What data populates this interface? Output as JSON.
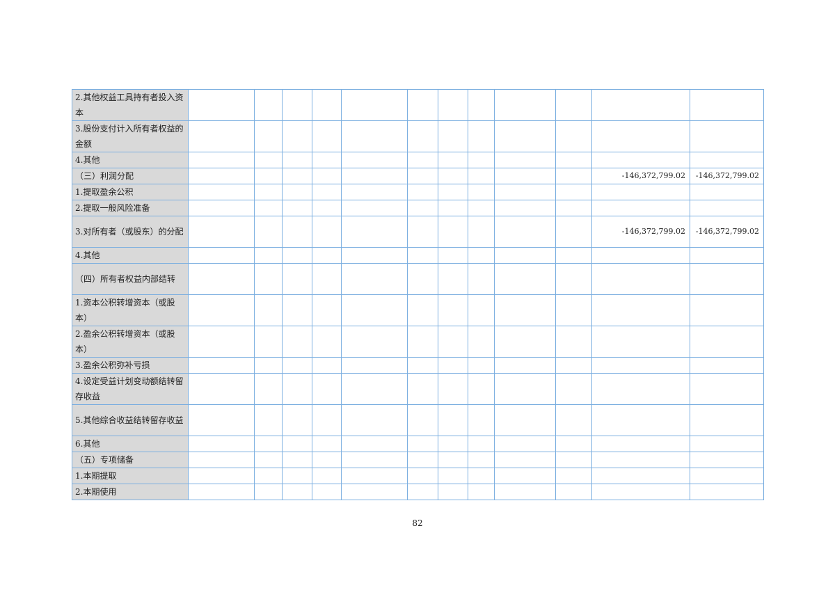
{
  "table": {
    "rows": [
      {
        "label": "2.其他权益工具持有者投入资本",
        "lines": 2,
        "values": [
          "",
          "",
          "",
          "",
          "",
          "",
          "",
          "",
          "",
          "",
          "",
          ""
        ]
      },
      {
        "label": "3.股份支付计入所有者权益的金额",
        "lines": 2,
        "values": [
          "",
          "",
          "",
          "",
          "",
          "",
          "",
          "",
          "",
          "",
          "",
          ""
        ]
      },
      {
        "label": "4.其他",
        "lines": 1,
        "values": [
          "",
          "",
          "",
          "",
          "",
          "",
          "",
          "",
          "",
          "",
          "",
          ""
        ]
      },
      {
        "label": "（三）利润分配",
        "lines": 1,
        "values": [
          "",
          "",
          "",
          "",
          "",
          "",
          "",
          "",
          "",
          "",
          "-146,372,799.02",
          "-146,372,799.02"
        ]
      },
      {
        "label": "1.提取盈余公积",
        "lines": 1,
        "values": [
          "",
          "",
          "",
          "",
          "",
          "",
          "",
          "",
          "",
          "",
          "",
          ""
        ]
      },
      {
        "label": "2.提取一般风险准备",
        "lines": 1,
        "values": [
          "",
          "",
          "",
          "",
          "",
          "",
          "",
          "",
          "",
          "",
          "",
          ""
        ]
      },
      {
        "label": "3.对所有者（或股东）的分配",
        "lines": 2,
        "values": [
          "",
          "",
          "",
          "",
          "",
          "",
          "",
          "",
          "",
          "",
          "-146,372,799.02",
          "-146,372,799.02"
        ]
      },
      {
        "label": "4.其他",
        "lines": 1,
        "values": [
          "",
          "",
          "",
          "",
          "",
          "",
          "",
          "",
          "",
          "",
          "",
          ""
        ]
      },
      {
        "label": "（四）所有者权益内部结转",
        "lines": 2,
        "values": [
          "",
          "",
          "",
          "",
          "",
          "",
          "",
          "",
          "",
          "",
          "",
          ""
        ]
      },
      {
        "label": "1.资本公积转增资本（或股本）",
        "lines": 2,
        "values": [
          "",
          "",
          "",
          "",
          "",
          "",
          "",
          "",
          "",
          "",
          "",
          ""
        ]
      },
      {
        "label": "2.盈余公积转增资本（或股本）",
        "lines": 2,
        "values": [
          "",
          "",
          "",
          "",
          "",
          "",
          "",
          "",
          "",
          "",
          "",
          ""
        ]
      },
      {
        "label": "3.盈余公积弥补亏损",
        "lines": 1,
        "values": [
          "",
          "",
          "",
          "",
          "",
          "",
          "",
          "",
          "",
          "",
          "",
          ""
        ]
      },
      {
        "label": "4.设定受益计划变动额结转留存收益",
        "lines": 2,
        "values": [
          "",
          "",
          "",
          "",
          "",
          "",
          "",
          "",
          "",
          "",
          "",
          ""
        ]
      },
      {
        "label": "5.其他综合收益结转留存收益",
        "lines": 2,
        "values": [
          "",
          "",
          "",
          "",
          "",
          "",
          "",
          "",
          "",
          "",
          "",
          ""
        ]
      },
      {
        "label": "6.其他",
        "lines": 1,
        "values": [
          "",
          "",
          "",
          "",
          "",
          "",
          "",
          "",
          "",
          "",
          "",
          ""
        ]
      },
      {
        "label": "（五）专项储备",
        "lines": 1,
        "values": [
          "",
          "",
          "",
          "",
          "",
          "",
          "",
          "",
          "",
          "",
          "",
          ""
        ]
      },
      {
        "label": "1.本期提取",
        "lines": 1,
        "values": [
          "",
          "",
          "",
          "",
          "",
          "",
          "",
          "",
          "",
          "",
          "",
          ""
        ]
      },
      {
        "label": "2.本期使用",
        "lines": 1,
        "values": [
          "",
          "",
          "",
          "",
          "",
          "",
          "",
          "",
          "",
          "",
          "",
          ""
        ]
      }
    ]
  },
  "page_number": "82"
}
